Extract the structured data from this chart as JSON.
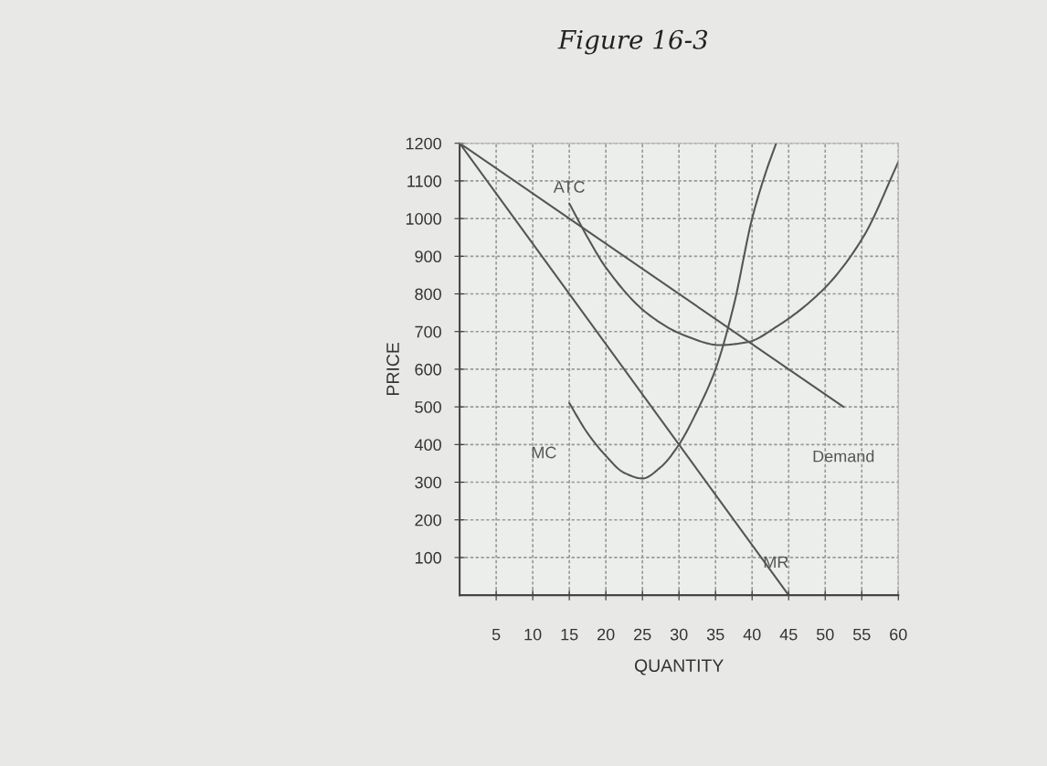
{
  "chart_data": {
    "type": "line",
    "title": "Figure 16-3",
    "xlabel": "QUANTITY",
    "ylabel": "PRICE",
    "xlim": [
      0,
      60
    ],
    "ylim": [
      0,
      1200
    ],
    "xticks": [
      5,
      10,
      15,
      20,
      25,
      30,
      35,
      40,
      45,
      50,
      55,
      60
    ],
    "yticks": [
      100,
      200,
      300,
      400,
      500,
      600,
      700,
      800,
      900,
      1000,
      1100,
      1200
    ],
    "grid": true,
    "legend": false,
    "marker": "none",
    "line_style": "solid",
    "series": [
      {
        "name": "Demand",
        "color": "#555555",
        "x": [
          0,
          52.5
        ],
        "values": [
          1200,
          500
        ]
      },
      {
        "name": "MR",
        "color": "#555555",
        "x": [
          0,
          45
        ],
        "values": [
          1200,
          0
        ]
      },
      {
        "name": "MC",
        "color": "#555555",
        "x": [
          15,
          17.5,
          20,
          22.5,
          25,
          27.5,
          30,
          32.5,
          35,
          37.5,
          40,
          42,
          43.3
        ],
        "values": [
          510,
          430,
          370,
          325,
          310,
          340,
          400,
          490,
          600,
          770,
          1000,
          1130,
          1200
        ]
      },
      {
        "name": "ATC",
        "color": "#555555",
        "x": [
          15,
          17.5,
          20,
          25.6,
          30.6,
          35.6,
          39.4,
          43.5,
          49.8,
          55.2,
          60
        ],
        "values": [
          1040,
          950,
          870,
          749,
          691,
          664,
          672,
          715,
          813,
          951,
          1150
        ]
      }
    ]
  }
}
